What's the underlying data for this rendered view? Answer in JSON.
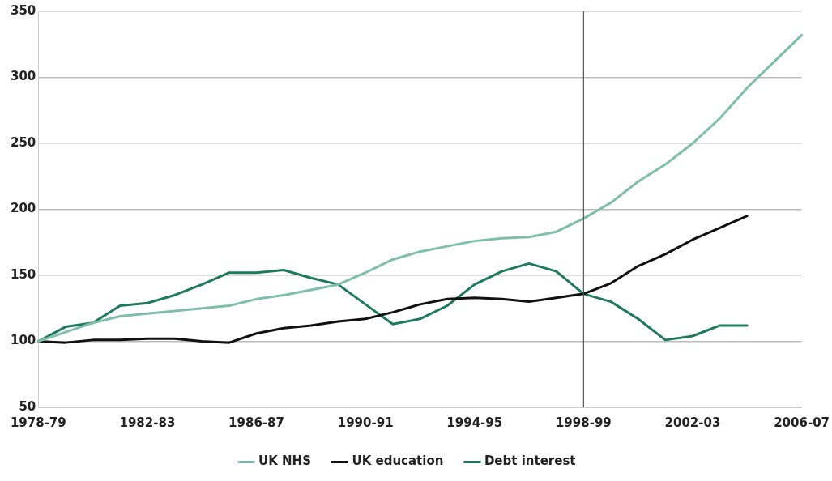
{
  "chart_data": {
    "type": "line",
    "categories": [
      "1978-79",
      null,
      null,
      null,
      "1982-83",
      null,
      null,
      null,
      "1986-87",
      null,
      null,
      null,
      "1990-91",
      null,
      null,
      null,
      "1994-95",
      null,
      null,
      null,
      "1998-99",
      null,
      null,
      null,
      "2002-03",
      null,
      null,
      null,
      "2006-07"
    ],
    "ylim": [
      50,
      350
    ],
    "yticks": [
      50,
      100,
      150,
      200,
      250,
      300,
      350
    ],
    "series": [
      {
        "name": "UK NHS",
        "color": "#7fbfa8",
        "values": [
          100,
          107,
          114,
          119,
          121,
          123,
          125,
          127,
          132,
          135,
          139,
          143,
          152,
          162,
          168,
          172,
          176,
          178,
          179,
          183,
          193,
          205,
          221,
          234,
          250,
          269,
          292,
          312,
          332
        ]
      },
      {
        "name": "UK education",
        "color": "#111111",
        "values": [
          100,
          99,
          101,
          101,
          102,
          102,
          100,
          99,
          106,
          110,
          112,
          115,
          117,
          122,
          128,
          132,
          133,
          132,
          130,
          133,
          136,
          144,
          157,
          166,
          177,
          186,
          195,
          null,
          null
        ]
      },
      {
        "name": "Debt interest",
        "color": "#1d7a5a",
        "values": [
          100,
          111,
          114,
          127,
          129,
          135,
          143,
          152,
          152,
          154,
          148,
          143,
          128,
          113,
          117,
          127,
          143,
          153,
          159,
          153,
          136,
          130,
          117,
          101,
          104,
          112,
          112,
          null,
          null
        ]
      }
    ],
    "ref_lines": [
      {
        "axis": "x",
        "value": "1998-99",
        "color": "#555555"
      }
    ],
    "grid": "y",
    "legend": "bottom",
    "marker": "none",
    "line_style": "solid"
  }
}
